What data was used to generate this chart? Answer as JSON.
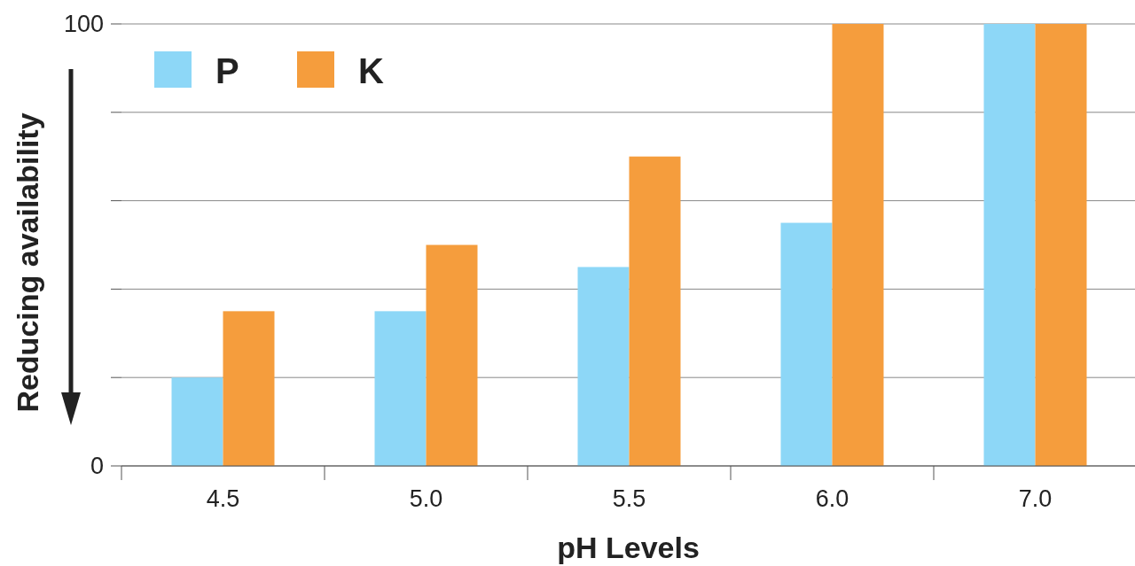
{
  "chart_data": {
    "type": "bar",
    "xlabel": "pH Levels",
    "ylabel": "Reducing availability",
    "categories": [
      "4.5",
      "5.0",
      "5.5",
      "6.0",
      "7.0"
    ],
    "series": [
      {
        "name": "P",
        "color": "#8dd7f7",
        "values": [
          20,
          35,
          45,
          55,
          100
        ]
      },
      {
        "name": "K",
        "color": "#f59d3d",
        "values": [
          35,
          50,
          70,
          100,
          100
        ]
      }
    ],
    "ylim": [
      0,
      100
    ],
    "yticks": [
      0,
      {
        "value": 20,
        "label": null
      },
      {
        "value": 40,
        "label": null
      },
      {
        "value": 60,
        "label": null
      },
      {
        "value": 80,
        "label": null
      },
      100
    ],
    "grid": "y",
    "legend": "top left"
  }
}
